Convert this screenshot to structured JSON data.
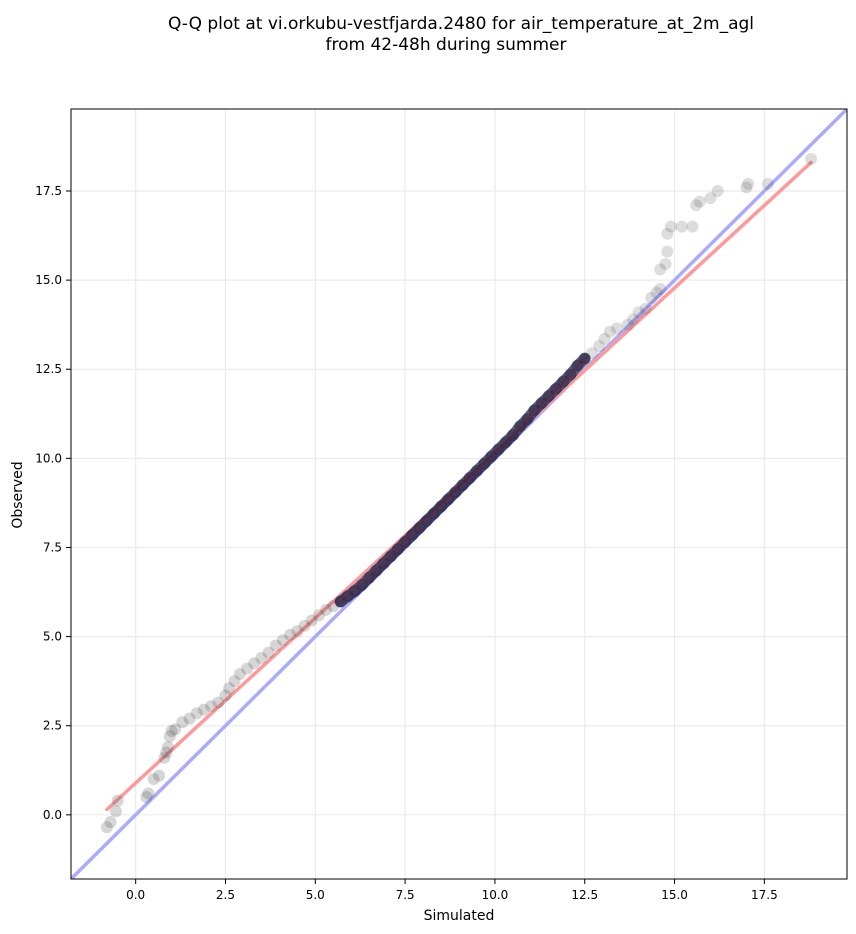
{
  "chart_data": {
    "type": "scatter",
    "title_line1": "Q-Q plot at vi.orkubu-vestfjarda.2480 for air_temperature_at_2m_agl",
    "title_line2": "from 42-48h during summer",
    "xlabel": "Simulated",
    "ylabel": "Observed",
    "xlim": [
      -1.8,
      19.8
    ],
    "ylim": [
      -1.8,
      19.8
    ],
    "xticks": [
      0.0,
      2.5,
      5.0,
      7.5,
      10.0,
      12.5,
      15.0,
      17.5
    ],
    "yticks": [
      0.0,
      2.5,
      5.0,
      7.5,
      10.0,
      12.5,
      15.0,
      17.5
    ],
    "xtick_labels": [
      "0.0",
      "2.5",
      "5.0",
      "7.5",
      "10.0",
      "12.5",
      "15.0",
      "17.5"
    ],
    "ytick_labels": [
      "0.0",
      "2.5",
      "5.0",
      "7.5",
      "10.0",
      "12.5",
      "15.0",
      "17.5"
    ],
    "grid": true,
    "reference_line": {
      "kind": "identity y=x",
      "color": "#aaaaff"
    },
    "fit_line": {
      "x": [
        -0.8,
        18.8
      ],
      "y": [
        0.15,
        18.3
      ],
      "color": "#ff9999"
    },
    "point_color": "#444444",
    "points_tail_low": [
      [
        -0.8,
        -0.35
      ],
      [
        -0.7,
        -0.2
      ],
      [
        -0.55,
        0.1
      ],
      [
        -0.5,
        0.4
      ],
      [
        0.3,
        0.5
      ],
      [
        0.35,
        0.6
      ],
      [
        0.5,
        1.0
      ],
      [
        0.65,
        1.1
      ],
      [
        0.8,
        1.6
      ],
      [
        0.85,
        1.75
      ],
      [
        0.9,
        1.9
      ],
      [
        0.95,
        2.2
      ],
      [
        1.0,
        2.35
      ],
      [
        1.1,
        2.4
      ],
      [
        1.3,
        2.6
      ],
      [
        1.5,
        2.7
      ],
      [
        1.7,
        2.85
      ],
      [
        1.9,
        2.95
      ],
      [
        2.1,
        3.05
      ],
      [
        2.3,
        3.15
      ],
      [
        2.5,
        3.35
      ],
      [
        2.6,
        3.55
      ],
      [
        2.75,
        3.75
      ],
      [
        2.9,
        3.95
      ],
      [
        3.1,
        4.1
      ],
      [
        3.3,
        4.25
      ],
      [
        3.5,
        4.4
      ],
      [
        3.7,
        4.55
      ],
      [
        3.9,
        4.75
      ],
      [
        4.1,
        4.9
      ],
      [
        4.3,
        5.05
      ],
      [
        4.5,
        5.15
      ],
      [
        4.7,
        5.3
      ],
      [
        4.9,
        5.45
      ],
      [
        5.1,
        5.6
      ],
      [
        5.3,
        5.75
      ],
      [
        5.5,
        5.85
      ]
    ],
    "points_core": [
      [
        5.7,
        5.98
      ],
      [
        5.9,
        6.13
      ],
      [
        6.1,
        6.28
      ],
      [
        6.3,
        6.45
      ],
      [
        6.5,
        6.65
      ],
      [
        6.7,
        6.85
      ],
      [
        6.9,
        7.05
      ],
      [
        7.1,
        7.25
      ],
      [
        7.3,
        7.45
      ],
      [
        7.5,
        7.65
      ],
      [
        7.7,
        7.85
      ],
      [
        7.9,
        8.05
      ],
      [
        8.1,
        8.25
      ],
      [
        8.3,
        8.45
      ],
      [
        8.5,
        8.65
      ],
      [
        8.7,
        8.85
      ],
      [
        8.9,
        9.05
      ],
      [
        9.1,
        9.25
      ],
      [
        9.3,
        9.45
      ],
      [
        9.5,
        9.65
      ],
      [
        9.7,
        9.85
      ],
      [
        9.9,
        10.05
      ],
      [
        10.1,
        10.25
      ],
      [
        10.3,
        10.45
      ],
      [
        10.5,
        10.65
      ],
      [
        10.7,
        10.9
      ],
      [
        10.9,
        11.1
      ],
      [
        11.1,
        11.35
      ],
      [
        11.3,
        11.55
      ],
      [
        11.5,
        11.75
      ],
      [
        11.7,
        11.95
      ],
      [
        11.9,
        12.15
      ],
      [
        12.1,
        12.35
      ],
      [
        12.3,
        12.6
      ],
      [
        12.5,
        12.8
      ]
    ],
    "points_tail_high": [
      [
        12.7,
        12.95
      ],
      [
        12.9,
        13.15
      ],
      [
        13.05,
        13.35
      ],
      [
        13.2,
        13.55
      ],
      [
        13.4,
        13.65
      ],
      [
        13.7,
        13.75
      ],
      [
        13.85,
        13.9
      ],
      [
        14.0,
        14.1
      ],
      [
        14.2,
        14.2
      ],
      [
        14.35,
        14.5
      ],
      [
        14.5,
        14.65
      ],
      [
        14.6,
        14.75
      ],
      [
        14.6,
        15.3
      ],
      [
        14.75,
        15.45
      ],
      [
        14.8,
        15.8
      ],
      [
        14.8,
        16.3
      ],
      [
        14.9,
        16.5
      ],
      [
        15.2,
        16.5
      ],
      [
        15.5,
        16.5
      ],
      [
        15.6,
        17.1
      ],
      [
        15.7,
        17.2
      ],
      [
        16.0,
        17.3
      ],
      [
        16.2,
        17.5
      ],
      [
        17.0,
        17.6
      ],
      [
        17.05,
        17.7
      ],
      [
        17.6,
        17.7
      ],
      [
        18.8,
        18.4
      ]
    ]
  }
}
